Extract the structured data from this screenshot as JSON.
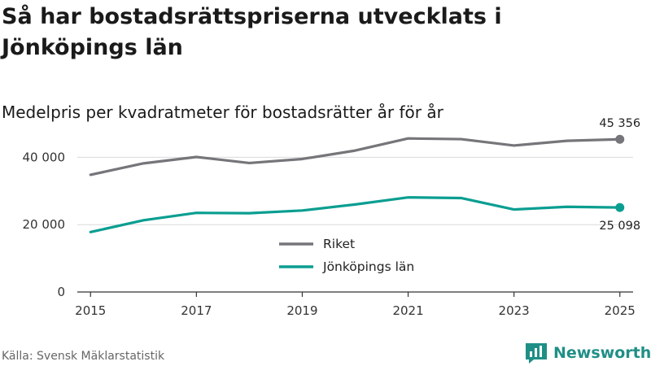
{
  "header": {
    "title": "Så har bostadsrättspriserna utvecklats i Jönköpings län",
    "subtitle": "Medelpris per kvadratmeter för bostadsrätter år för år"
  },
  "footer": {
    "source": "Källa: Svensk Mäklarstatistik",
    "brand": "Newsworthy",
    "brand_icon": "bar-chart-logo-icon",
    "brand_color": "#1f8f86"
  },
  "chart_data": {
    "type": "line",
    "title": "Så har bostadsrättspriserna utvecklats i Jönköpings län",
    "subtitle": "Medelpris per kvadratmeter för bostadsrätter år för år",
    "xlabel": "",
    "ylabel": "",
    "x": [
      2015,
      2016,
      2017,
      2018,
      2019,
      2020,
      2021,
      2022,
      2023,
      2024,
      2025
    ],
    "x_ticks": [
      "2015",
      "2017",
      "2019",
      "2021",
      "2023",
      "2025"
    ],
    "y_ticks": [
      "0",
      "20 000",
      "40 000"
    ],
    "y_tick_values": [
      0,
      20000,
      40000
    ],
    "ylim": [
      0,
      50000
    ],
    "grid": true,
    "legend_position": "center",
    "series": [
      {
        "name": "Riket",
        "color": "#75757a",
        "values": [
          34800,
          38200,
          40100,
          38300,
          39500,
          42000,
          45600,
          45400,
          43500,
          44900,
          45356
        ],
        "end_label": "45 356"
      },
      {
        "name": "Jönköpings län",
        "color": "#0a9e91",
        "values": [
          17800,
          21300,
          23500,
          23400,
          24200,
          26000,
          28100,
          27900,
          24500,
          25300,
          25098
        ],
        "end_label": "25 098"
      }
    ]
  }
}
